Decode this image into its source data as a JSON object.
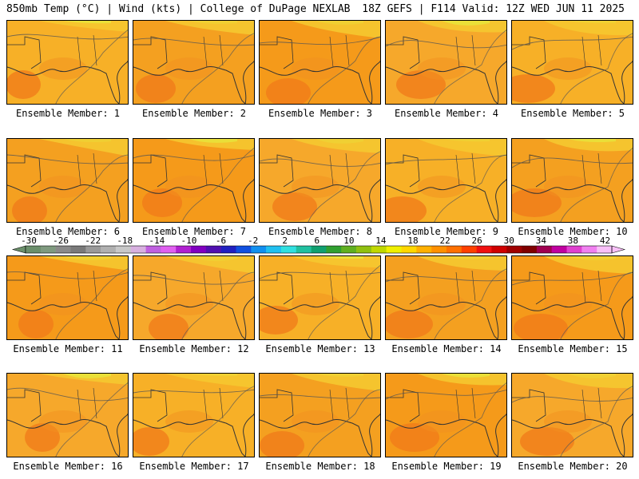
{
  "header": {
    "left": "850mb Temp (°C) | Wind (kts) | College of DuPage NEXLAB",
    "right": "18Z GEFS | F114 Valid: 12Z WED JUN 11 2025"
  },
  "panels": [
    {
      "label": "Ensemble Member: 1"
    },
    {
      "label": "Ensemble Member: 2"
    },
    {
      "label": "Ensemble Member: 3"
    },
    {
      "label": "Ensemble Member: 4"
    },
    {
      "label": "Ensemble Member: 5"
    },
    {
      "label": "Ensemble Member: 6"
    },
    {
      "label": "Ensemble Member: 7"
    },
    {
      "label": "Ensemble Member: 8"
    },
    {
      "label": "Ensemble Member: 9"
    },
    {
      "label": "Ensemble Member: 10"
    },
    {
      "label": "Ensemble Member: 11"
    },
    {
      "label": "Ensemble Member: 12"
    },
    {
      "label": "Ensemble Member: 13"
    },
    {
      "label": "Ensemble Member: 14"
    },
    {
      "label": "Ensemble Member: 15"
    },
    {
      "label": "Ensemble Member: 16"
    },
    {
      "label": "Ensemble Member: 17"
    },
    {
      "label": "Ensemble Member: 18"
    },
    {
      "label": "Ensemble Member: 19"
    },
    {
      "label": "Ensemble Member: 20"
    }
  ],
  "colorbar": {
    "labels": [
      "-30",
      "-26",
      "-22",
      "-18",
      "-14",
      "-10",
      "-6",
      "-2",
      "2",
      "6",
      "10",
      "14",
      "18",
      "22",
      "26",
      "30",
      "34",
      "38",
      "42"
    ],
    "colors": [
      "#6b8f6b",
      "#7f9a7f",
      "#8a8a8a",
      "#7a7a7a",
      "#9a9a9a",
      "#b0b0b0",
      "#c8c8c8",
      "#d8b0e0",
      "#c060e0",
      "#e060f0",
      "#b020d0",
      "#8000c0",
      "#5010b0",
      "#2020c0",
      "#1050e0",
      "#1090f0",
      "#20c0f0",
      "#30e0e0",
      "#20c0a0",
      "#10a070",
      "#30a030",
      "#60b020",
      "#90c010",
      "#c0d800",
      "#f0f000",
      "#ffd700",
      "#ffb000",
      "#ff9000",
      "#ff7000",
      "#ff4000",
      "#f01010",
      "#d00000",
      "#a00000",
      "#800000",
      "#a00050",
      "#c000a0",
      "#e040d0",
      "#f080f0",
      "#f8c0f8"
    ],
    "accent_text": "#000000"
  }
}
